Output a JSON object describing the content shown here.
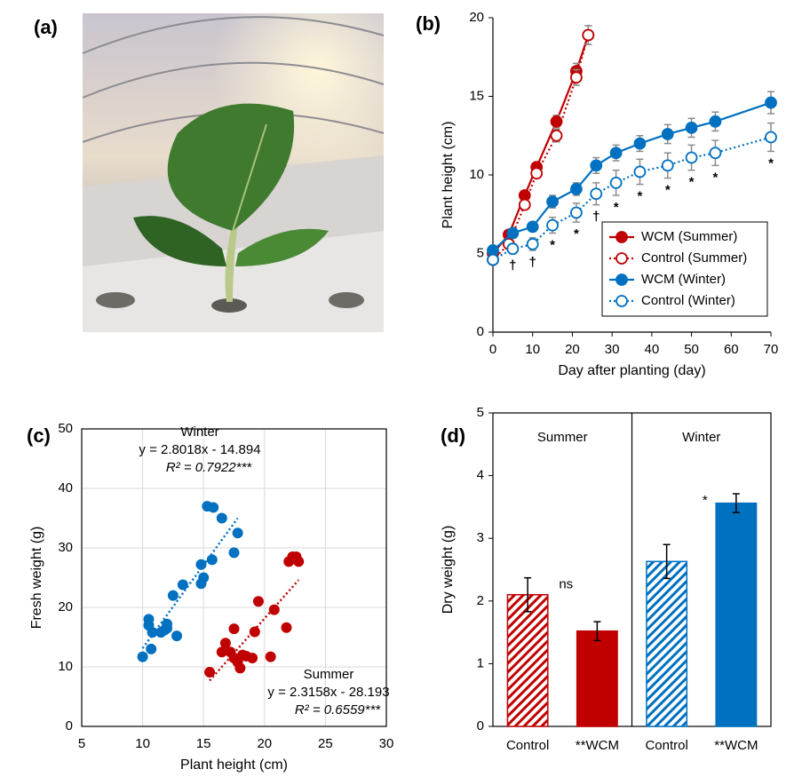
{
  "photo": {
    "label": "(a)"
  },
  "chart_data": [
    {
      "panel": "(b)",
      "type": "line",
      "x_label": "Day after planting (day)",
      "y_label": "Plant height (cm)",
      "xlim": [
        0,
        70
      ],
      "xticks": [
        0,
        10,
        20,
        30,
        40,
        50,
        60,
        70
      ],
      "ylim": [
        0,
        20
      ],
      "yticks": [
        0,
        5,
        10,
        15,
        20
      ],
      "grid": false,
      "legend": "lower right",
      "series": [
        {
          "name": "WCM (Summer)",
          "color": "#c00000",
          "linestyle": "solid",
          "marker_fill": true,
          "x": [
            0,
            4,
            8,
            11,
            16,
            21,
            24
          ],
          "values": [
            5.0,
            6.2,
            8.7,
            10.5,
            13.4,
            16.6,
            18.9
          ],
          "errors": [
            0.2,
            0.2,
            0.3,
            0.3,
            0.4,
            0.5,
            0.6
          ]
        },
        {
          "name": "Control (Summer)",
          "color": "#c00000",
          "linestyle": "dotted",
          "marker_fill": false,
          "x": [
            0,
            4,
            8,
            11,
            16,
            21,
            24
          ],
          "values": [
            4.6,
            5.6,
            8.1,
            10.1,
            12.5,
            16.2,
            18.9
          ],
          "errors": [
            0.2,
            0.2,
            0.3,
            0.3,
            0.4,
            0.5,
            0.6
          ]
        },
        {
          "name": "WCM (Winter)",
          "color": "#0070c0",
          "linestyle": "solid",
          "marker_fill": true,
          "x": [
            0,
            5,
            10,
            15,
            21,
            26,
            31,
            37,
            44,
            50,
            56,
            70
          ],
          "values": [
            5.2,
            6.3,
            6.7,
            8.3,
            9.1,
            10.6,
            11.4,
            12.0,
            12.6,
            13.0,
            13.4,
            14.6
          ],
          "errors": [
            0.2,
            0.3,
            0.3,
            0.4,
            0.4,
            0.5,
            0.5,
            0.5,
            0.6,
            0.6,
            0.6,
            0.7
          ]
        },
        {
          "name": "Control (Winter)",
          "color": "#0070c0",
          "linestyle": "dotted",
          "marker_fill": false,
          "x": [
            0,
            5,
            10,
            15,
            21,
            26,
            31,
            37,
            44,
            50,
            56,
            70
          ],
          "values": [
            4.6,
            5.3,
            5.6,
            6.8,
            7.6,
            8.8,
            9.5,
            10.2,
            10.6,
            11.1,
            11.4,
            12.4
          ],
          "errors": [
            0.2,
            0.3,
            0.4,
            0.5,
            0.6,
            0.7,
            0.8,
            0.8,
            0.8,
            0.8,
            0.8,
            0.9
          ],
          "labels": [
            null,
            "†",
            "†",
            "*",
            "*",
            "†",
            "*",
            "*",
            "*",
            "*",
            "*",
            "*"
          ]
        }
      ]
    },
    {
      "panel": "(c)",
      "type": "scatter",
      "x_label": "Plant height (cm)",
      "y_label": "Fresh weight (g)",
      "xlim": [
        5,
        30
      ],
      "xticks": [
        5,
        10,
        15,
        20,
        25,
        30
      ],
      "ylim": [
        0,
        50
      ],
      "yticks": [
        0,
        10,
        20,
        30,
        40,
        50
      ],
      "grid": true,
      "series": [
        {
          "name": "Winter",
          "color": "#0070c0",
          "x": [
            10.0,
            10.5,
            10.5,
            10.7,
            10.8,
            11.5,
            11.8,
            12.0,
            12.0,
            12.5,
            12.8,
            13.3,
            14.8,
            14.8,
            15.0,
            15.3,
            15.8,
            15.7,
            16.5,
            17.5,
            17.8
          ],
          "y": [
            11.7,
            17.0,
            18.0,
            13.0,
            15.8,
            15.8,
            16.2,
            17.2,
            16.5,
            22.0,
            15.2,
            23.8,
            27.2,
            24.0,
            25.0,
            37.0,
            36.8,
            28.0,
            35.0,
            29.2,
            32.5
          ],
          "trendline": {
            "slope": 2.8018,
            "intercept": -14.894,
            "equation": "y = 2.8018x - 14.894",
            "r2": "R² = 0.7922***"
          }
        },
        {
          "name": "Summer",
          "color": "#c00000",
          "x": [
            15.5,
            16.5,
            16.8,
            17.2,
            17.5,
            17.5,
            17.8,
            18.0,
            18.2,
            18.5,
            19.0,
            19.2,
            19.5,
            20.5,
            20.8,
            21.8,
            22.0,
            22.3,
            22.6,
            22.8
          ],
          "y": [
            9.1,
            12.5,
            14.0,
            12.5,
            16.4,
            11.5,
            10.8,
            9.8,
            12.0,
            11.8,
            11.5,
            15.9,
            21.0,
            11.7,
            19.6,
            16.6,
            27.7,
            28.5,
            28.5,
            27.7
          ],
          "trendline": {
            "slope": 2.3158,
            "intercept": -28.193,
            "equation": "y = 2.3158x - 28.193",
            "r2": "R² = 0.6559***"
          }
        }
      ]
    },
    {
      "panel": "(d)",
      "type": "bar",
      "y_label": "Dry weight (g)",
      "ylim": [
        0,
        5
      ],
      "yticks": [
        0,
        1,
        2,
        3,
        4,
        5
      ],
      "grid": false,
      "categories": [
        "Control",
        "**WCM",
        "Control",
        "**WCM"
      ],
      "values": [
        2.1,
        1.52,
        2.63,
        3.56
      ],
      "errors": [
        0.27,
        0.15,
        0.27,
        0.15
      ],
      "colors": [
        "#c00000",
        "#c00000",
        "#0070c0",
        "#0070c0"
      ],
      "hatch": [
        true,
        false,
        true,
        false
      ],
      "groups": [
        {
          "label": "Summer",
          "color": "#c00000",
          "annotation": "ns"
        },
        {
          "label": "Winter",
          "color": "#0070c0",
          "annotation": "*"
        }
      ]
    }
  ]
}
